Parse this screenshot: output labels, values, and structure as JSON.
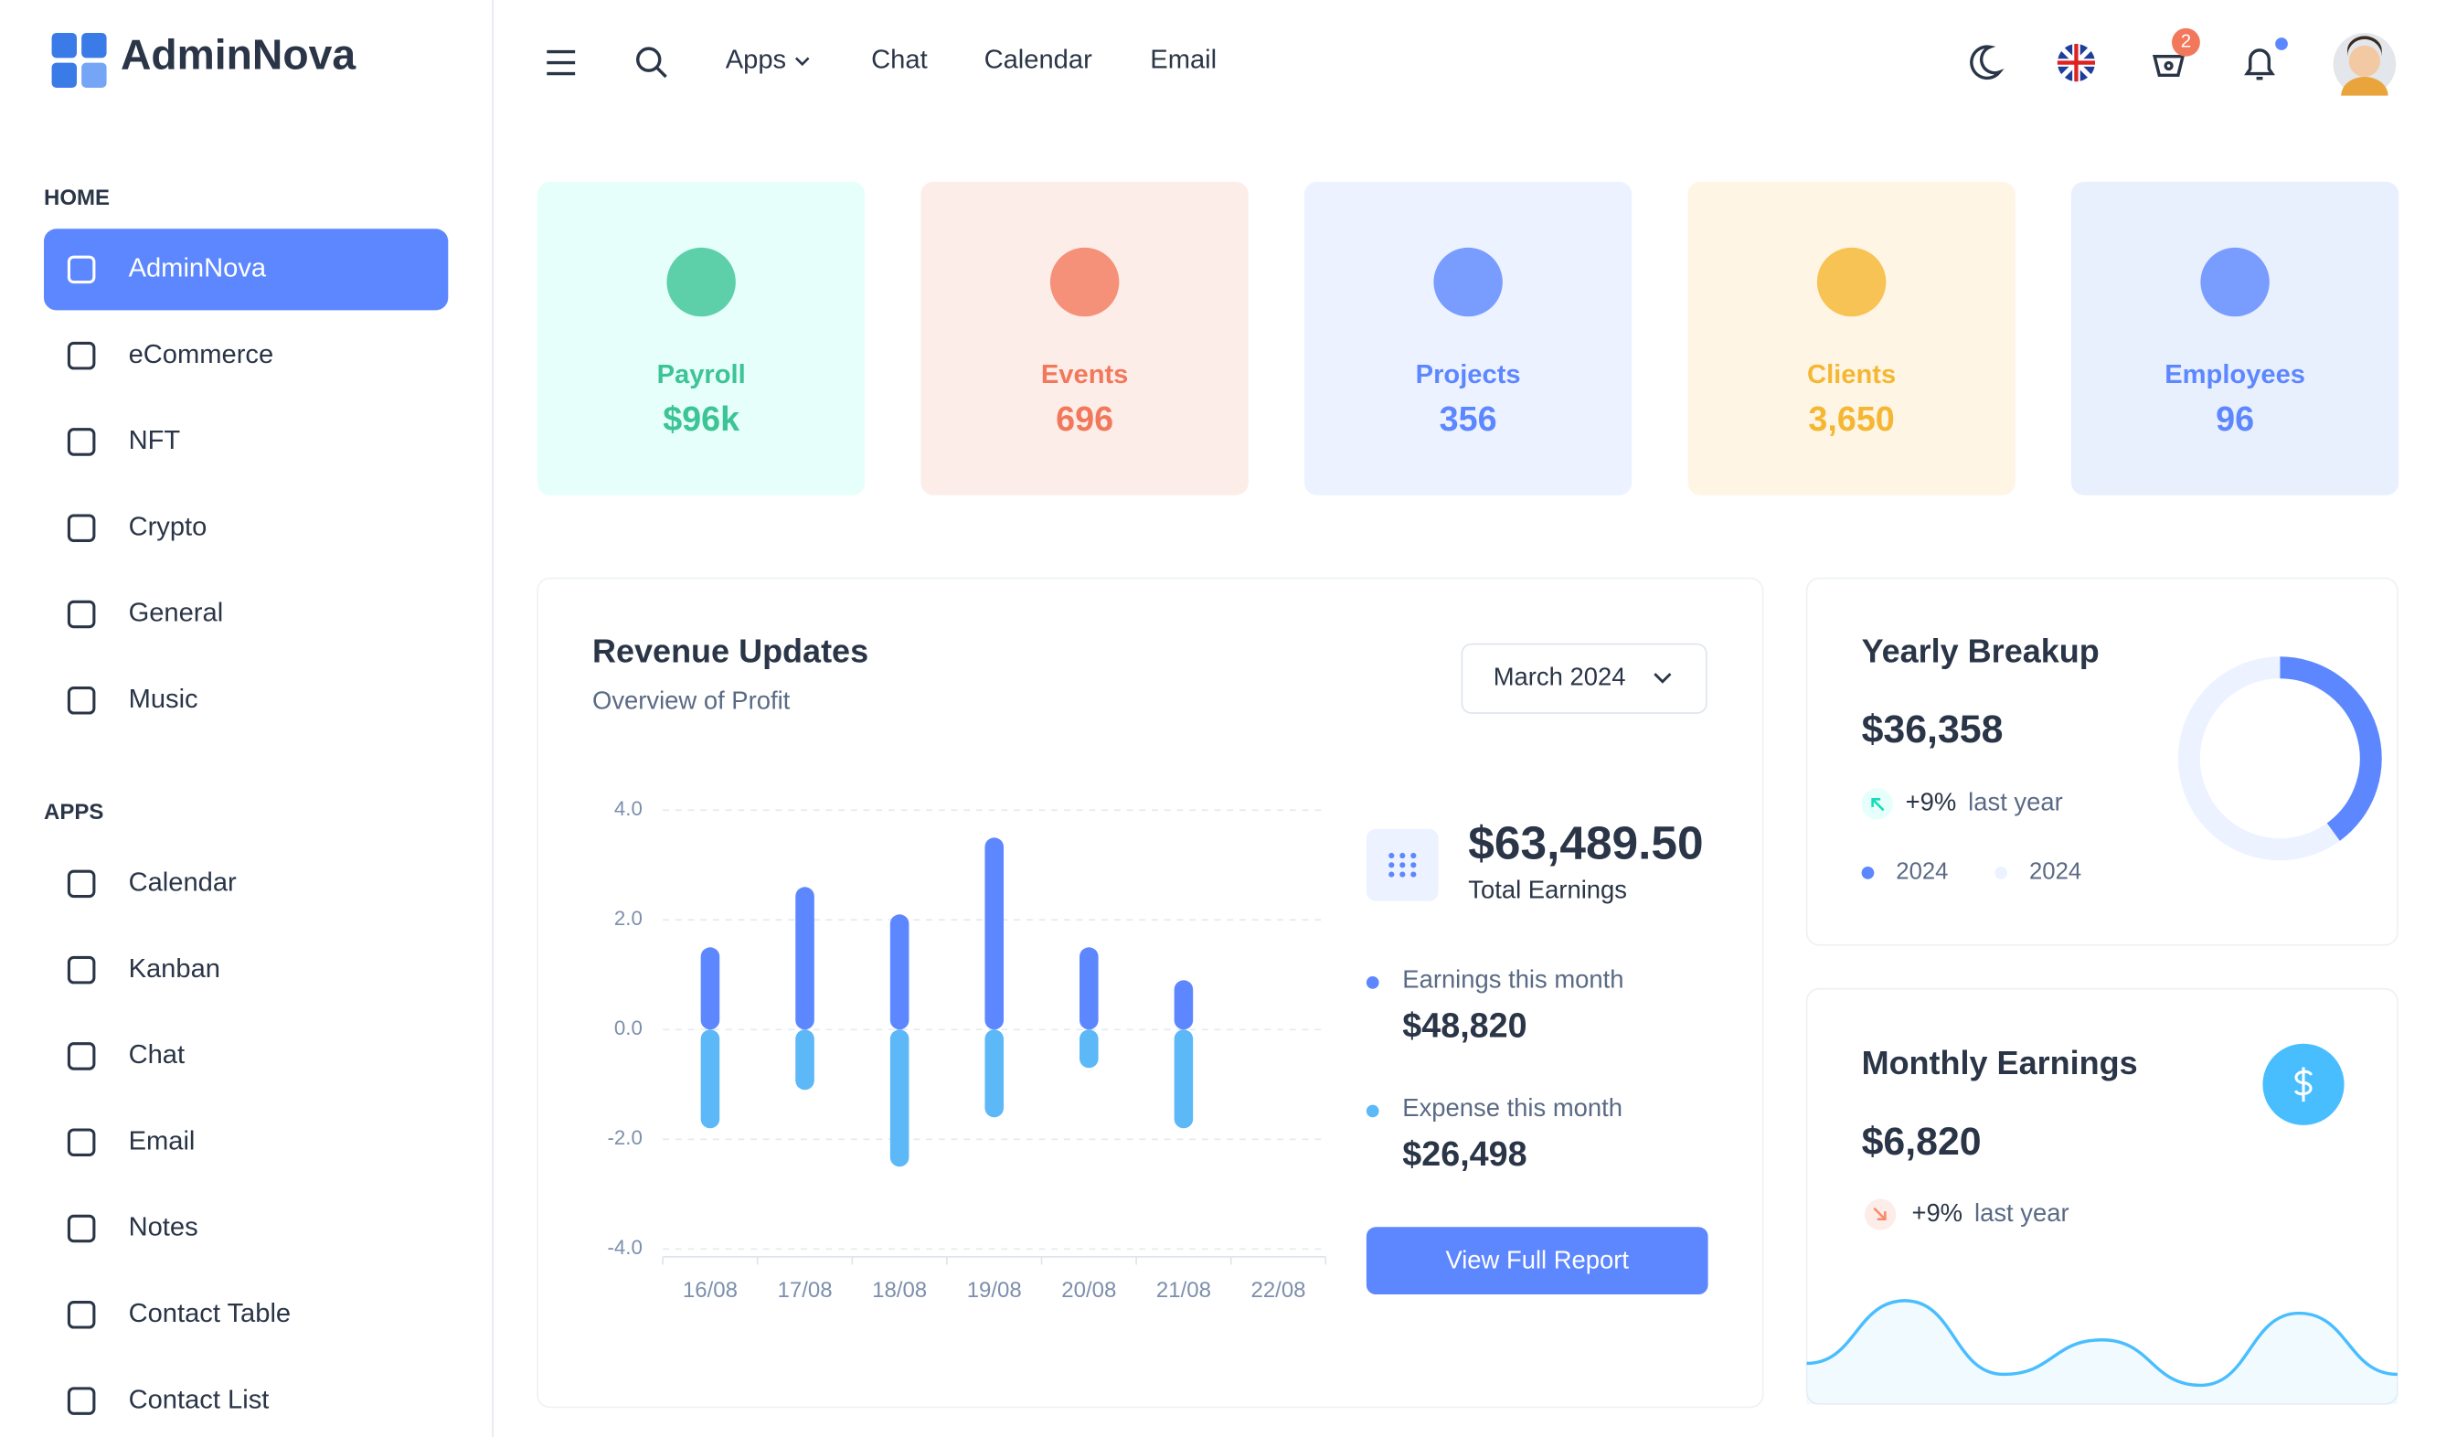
{
  "brand": "AdminNova",
  "sidebar": [
    {
      "title": "HOME",
      "items": [
        "AdminNova",
        "eCommerce",
        "NFT",
        "Crypto",
        "General",
        "Music"
      ]
    },
    {
      "title": "APPS",
      "items": [
        "Calendar",
        "Kanban",
        "Chat",
        "Email",
        "Notes",
        "Contact Table",
        "Contact List"
      ]
    }
  ],
  "header": {
    "nav": [
      "Apps",
      "Chat",
      "Calendar",
      "Email"
    ],
    "cart_count": 2
  },
  "cards": [
    {
      "label": "Payroll",
      "value": "$96k",
      "color": "#3cc495",
      "bg": "#e6fffa"
    },
    {
      "label": "Events",
      "value": "696",
      "color": "#f2785c",
      "bg": "#fdede8"
    },
    {
      "label": "Projects",
      "value": "356",
      "color": "#5d87ff",
      "bg": "#ecf2ff"
    },
    {
      "label": "Clients",
      "value": "3,650",
      "color": "#f5b731",
      "bg": "#fef5e5"
    },
    {
      "label": "Employees",
      "value": "96",
      "color": "#5d87ff",
      "bg": "#e8effd"
    }
  ],
  "revenue": {
    "title": "Revenue Updates",
    "subtitle": "Overview of Profit",
    "period": "March 2024",
    "total": "$63,489.50",
    "total_label": "Total Earnings",
    "earnings_value": "$48,820",
    "expense_value": "$26,498",
    "button": "View Full Report",
    "chart": {
      "type": "bar",
      "categories": [
        "16/08",
        "17/08",
        "18/08",
        "19/08",
        "20/08",
        "21/08",
        "22/08"
      ],
      "series": [
        {
          "name": "Earnings this month",
          "color": "#5d87ff",
          "values": [
            1.5,
            2.6,
            2.1,
            3.5,
            1.5,
            0.9,
            null
          ]
        },
        {
          "name": "Expense this month",
          "color": "#5cb8f7",
          "values": [
            -1.8,
            -1.1,
            -2.5,
            -1.6,
            -0.7,
            -1.8,
            null
          ]
        }
      ],
      "ylim": [
        -4,
        4
      ],
      "yticks": [
        {
          "value": -4,
          "label": "-4.0"
        },
        {
          "value": -2,
          "label": "-2.0"
        },
        {
          "value": 0,
          "label": "0.0"
        },
        {
          "value": 2,
          "label": "2.0"
        },
        {
          "value": 4,
          "label": "4.0"
        }
      ],
      "grid": true
    }
  },
  "yearly": {
    "title": "Yearly Breakup",
    "value": "$36,358",
    "change": "+9%",
    "change_label": "last year",
    "chart": {
      "type": "donut",
      "categories": [
        "2024",
        "2024"
      ],
      "values": [
        40,
        60
      ],
      "colors": [
        "#5d87ff",
        "#ecf2ff"
      ]
    }
  },
  "monthly": {
    "title": "Monthly Earnings",
    "value": "$6,820",
    "change": "+9%",
    "change_label": "last year",
    "chart": {
      "type": "area",
      "values": [
        30,
        70,
        23,
        45,
        16,
        62,
        23
      ],
      "color": "#49beff"
    }
  }
}
